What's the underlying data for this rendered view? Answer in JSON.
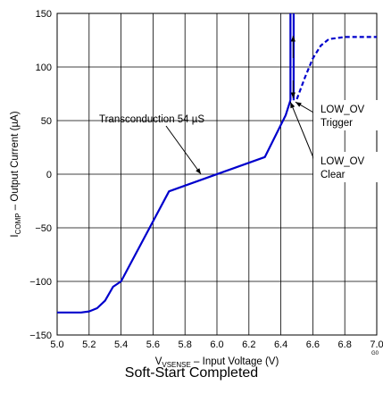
{
  "chart_data": {
    "type": "line",
    "caption": "Soft-Start Completed",
    "figure_id": "G0",
    "xlabel": {
      "pre": "V",
      "sub": "VSENSE",
      "post": " – Input Voltage (V)"
    },
    "ylabel": {
      "pre": "I",
      "sub": "COMP",
      "post": " – Output Current (µA)"
    },
    "xlim": [
      5.0,
      7.0
    ],
    "ylim": [
      -150,
      150
    ],
    "x_ticks": [
      5.0,
      5.2,
      5.4,
      5.6,
      5.8,
      6.0,
      6.2,
      6.4,
      6.6,
      6.8,
      7.0
    ],
    "x_tick_labels": [
      "5.0",
      "5.2",
      "5.4",
      "5.6",
      "5.8",
      "6.0",
      "6.2",
      "6.4",
      "6.6",
      "6.8",
      "7.0"
    ],
    "y_ticks": [
      -150,
      -100,
      -50,
      0,
      50,
      100,
      150
    ],
    "y_tick_labels": [
      "−150",
      "−100",
      "−50",
      "0",
      "50",
      "100",
      "150"
    ],
    "grid": true,
    "line_color": "#0000cc",
    "series": [
      {
        "style": "solid",
        "x": [
          5.0,
          5.15,
          5.2,
          5.25,
          5.3,
          5.35,
          5.4,
          5.7,
          6.3,
          6.43,
          6.46
        ],
        "y": [
          -129,
          -129,
          -128,
          -125,
          -118,
          -105,
          -100,
          -16,
          16,
          55,
          69
        ]
      },
      {
        "style": "solid",
        "x": [
          6.46,
          6.46
        ],
        "y": [
          69,
          150
        ]
      },
      {
        "style": "solid",
        "x": [
          6.48,
          6.48
        ],
        "y": [
          69,
          150
        ]
      },
      {
        "style": "dashed",
        "x": [
          6.5,
          6.55,
          6.6,
          6.65,
          6.7,
          6.8,
          6.9,
          7.0
        ],
        "y": [
          70,
          90,
          108,
          120,
          126,
          128,
          128,
          128
        ]
      }
    ],
    "annotations": [
      {
        "text": "Transconduction 54 µS",
        "x": 5.9,
        "y": 0
      },
      {
        "lines": [
          "LOW_OV",
          "Trigger"
        ],
        "x": 6.48,
        "y": 69
      },
      {
        "lines": [
          "LOW_OV",
          "Clear"
        ],
        "x": 6.46,
        "y": 69
      }
    ]
  }
}
